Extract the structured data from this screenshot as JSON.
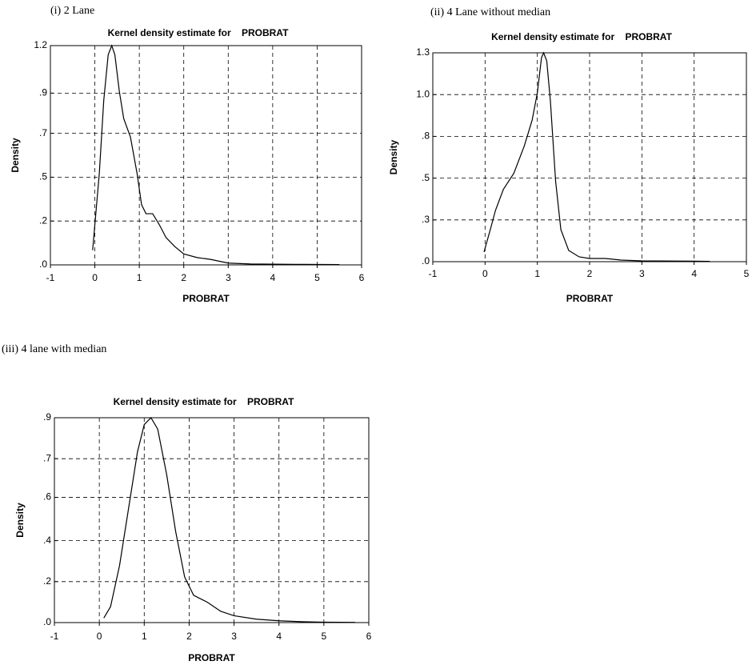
{
  "chart_data": [
    {
      "type": "line",
      "caption": "(i) 2 Lane",
      "title": "Kernel density estimate for    PROBRAT",
      "xlabel": "PROBRAT",
      "ylabel": "Density",
      "color": "#000000",
      "grid": true,
      "xlim": [
        -1,
        6
      ],
      "xticks": [
        -1,
        0,
        1,
        2,
        3,
        4,
        5,
        6
      ],
      "ylim": [
        0,
        1.2
      ],
      "yticks": [
        {
          "value": 0,
          "label": ".0"
        },
        {
          "value": 0.24,
          "label": ".2"
        },
        {
          "value": 0.48,
          "label": ".5"
        },
        {
          "value": 0.72,
          "label": ".7"
        },
        {
          "value": 0.94,
          "label": ".9"
        },
        {
          "value": 1.2,
          "label": "1.2"
        }
      ],
      "x": [
        -0.05,
        0.1,
        0.2,
        0.3,
        0.38,
        0.45,
        0.55,
        0.65,
        0.8,
        0.95,
        1.05,
        1.15,
        1.3,
        1.45,
        1.6,
        1.8,
        2.0,
        2.3,
        2.6,
        3.0,
        3.5,
        4.5,
        5.5
      ],
      "values": [
        0.08,
        0.5,
        0.9,
        1.15,
        1.2,
        1.15,
        0.95,
        0.8,
        0.7,
        0.5,
        0.33,
        0.28,
        0.28,
        0.22,
        0.15,
        0.1,
        0.06,
        0.04,
        0.03,
        0.01,
        0.005,
        0.003,
        0.002
      ]
    },
    {
      "type": "line",
      "caption": "(ii) 4 Lane without median",
      "title": "Kernel density estimate for    PROBRAT",
      "xlabel": "PROBRAT",
      "ylabel": "Density",
      "color": "#000000",
      "grid": true,
      "xlim": [
        -1,
        5
      ],
      "xticks": [
        -1,
        0,
        1,
        2,
        3,
        4,
        5
      ],
      "ylim": [
        0,
        1.3
      ],
      "yticks": [
        {
          "value": 0,
          "label": ".0"
        },
        {
          "value": 0.26,
          "label": ".3"
        },
        {
          "value": 0.52,
          "label": ".5"
        },
        {
          "value": 0.78,
          "label": ".8"
        },
        {
          "value": 1.04,
          "label": "1.0"
        },
        {
          "value": 1.3,
          "label": "1.3"
        }
      ],
      "x": [
        -0.02,
        0.1,
        0.2,
        0.35,
        0.55,
        0.75,
        0.9,
        1.0,
        1.08,
        1.12,
        1.18,
        1.25,
        1.35,
        1.45,
        1.6,
        1.8,
        2.0,
        2.3,
        2.6,
        3.0,
        4.0,
        4.3
      ],
      "values": [
        0.06,
        0.2,
        0.32,
        0.45,
        0.55,
        0.72,
        0.88,
        1.05,
        1.27,
        1.3,
        1.25,
        1.0,
        0.5,
        0.2,
        0.07,
        0.03,
        0.02,
        0.02,
        0.01,
        0.005,
        0.003,
        0.002
      ]
    },
    {
      "type": "line",
      "caption": "(iii)  4 lane with median",
      "title": "Kernel density estimate for    PROBRAT",
      "xlabel": "PROBRAT",
      "ylabel": "Density",
      "color": "#000000",
      "grid": true,
      "xlim": [
        -1,
        6
      ],
      "xticks": [
        -1,
        0,
        1,
        2,
        3,
        4,
        5,
        6
      ],
      "ylim": [
        0,
        0.9
      ],
      "yticks": [
        {
          "value": 0,
          "label": ".0"
        },
        {
          "value": 0.18,
          "label": ".2"
        },
        {
          "value": 0.36,
          "label": ".4"
        },
        {
          "value": 0.55,
          "label": ".6"
        },
        {
          "value": 0.72,
          "label": ".7"
        },
        {
          "value": 0.9,
          "label": ".9"
        }
      ],
      "x": [
        0.1,
        0.25,
        0.45,
        0.65,
        0.85,
        1.0,
        1.15,
        1.3,
        1.5,
        1.7,
        1.9,
        2.1,
        2.4,
        2.7,
        3.0,
        3.5,
        4.0,
        4.5,
        5.0,
        5.7
      ],
      "values": [
        0.02,
        0.07,
        0.25,
        0.5,
        0.75,
        0.87,
        0.9,
        0.85,
        0.65,
        0.4,
        0.2,
        0.12,
        0.09,
        0.05,
        0.03,
        0.015,
        0.008,
        0.004,
        0.002,
        0.001
      ]
    }
  ]
}
